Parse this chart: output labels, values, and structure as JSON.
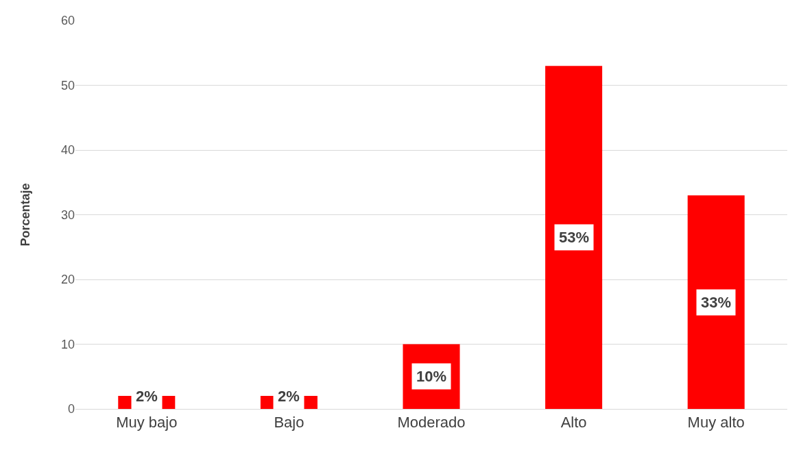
{
  "chart_data": {
    "type": "bar",
    "ylabel": "Porcentaje",
    "categories": [
      "Muy bajo",
      "Bajo",
      "Moderado",
      "Alto",
      "Muy alto"
    ],
    "values": [
      2,
      2,
      10,
      53,
      33
    ],
    "value_labels": [
      "2%",
      "2%",
      "10%",
      "53%",
      "33%"
    ],
    "color": "#ff0000",
    "ylim": [
      0,
      60
    ],
    "yticks": [
      0,
      10,
      20,
      30,
      40,
      50,
      60
    ],
    "grid": "y",
    "legend": false
  }
}
